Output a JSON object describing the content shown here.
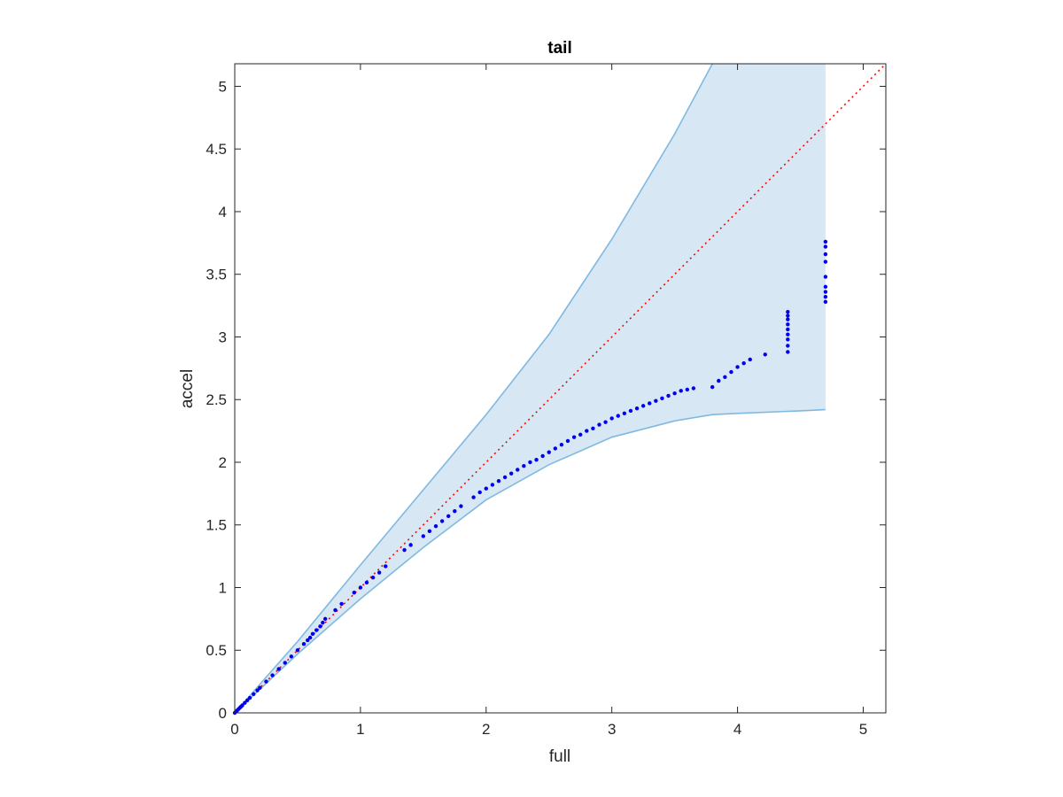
{
  "chart_data": {
    "type": "scatter",
    "title": "tail",
    "xlabel": "full",
    "ylabel": "accel",
    "xlim": [
      0,
      5.18
    ],
    "ylim": [
      0,
      5.18
    ],
    "xticks": [
      0,
      1,
      2,
      3,
      4,
      5
    ],
    "yticks": [
      0,
      0.5,
      1,
      1.5,
      2,
      2.5,
      3,
      3.5,
      4,
      4.5,
      5
    ],
    "xtick_labels": [
      "0",
      "1",
      "2",
      "3",
      "4",
      "5"
    ],
    "ytick_labels": [
      "0",
      "0.5",
      "1",
      "1.5",
      "2",
      "2.5",
      "3",
      "3.5",
      "4",
      "4.5",
      "5"
    ],
    "grid": false,
    "colors": {
      "band_fill": "#d7e8f4",
      "band_edge": "#80b9e0",
      "points": "#0000ee",
      "reference": "#ff0000"
    },
    "band": {
      "x": [
        0,
        0.5,
        1.0,
        1.5,
        2.0,
        2.5,
        3.0,
        3.5,
        3.8,
        4.0,
        4.5,
        4.7
      ],
      "upper": [
        0,
        0.57,
        1.18,
        1.78,
        2.38,
        3.02,
        3.78,
        4.62,
        5.18,
        5.18,
        5.18,
        5.18
      ],
      "lower": [
        0,
        0.47,
        0.91,
        1.32,
        1.7,
        1.98,
        2.2,
        2.33,
        2.38,
        2.39,
        2.41,
        2.42
      ]
    },
    "reference_line": {
      "x": [
        0,
        5.18
      ],
      "y": [
        0,
        5.18
      ],
      "style": "dotted"
    },
    "series": [
      {
        "x": [
          0.0,
          0.01,
          0.02,
          0.03,
          0.04,
          0.05,
          0.06,
          0.08,
          0.1,
          0.12,
          0.15,
          0.18,
          0.2,
          0.25,
          0.3,
          0.35,
          0.4,
          0.45,
          0.5,
          0.55,
          0.58,
          0.6,
          0.62,
          0.65,
          0.68,
          0.7,
          0.72,
          0.8,
          0.85,
          0.95,
          1.0,
          1.05,
          1.1,
          1.15,
          1.2,
          1.35,
          1.4,
          1.5,
          1.55,
          1.6,
          1.65,
          1.7,
          1.75,
          1.8,
          1.9,
          1.95,
          2.0,
          2.05,
          2.1,
          2.15,
          2.2,
          2.25,
          2.3,
          2.35,
          2.4,
          2.45,
          2.5,
          2.55,
          2.6,
          2.65,
          2.7,
          2.75,
          2.8,
          2.85,
          2.9,
          2.95,
          3.0,
          3.05,
          3.1,
          3.15,
          3.2,
          3.25,
          3.3,
          3.35,
          3.4,
          3.45,
          3.5,
          3.55,
          3.6,
          3.65,
          3.8,
          3.85,
          3.9,
          3.95,
          4.0,
          4.05,
          4.1,
          4.22,
          4.4,
          4.4,
          4.4,
          4.4,
          4.4,
          4.4,
          4.4,
          4.4,
          4.4,
          4.7,
          4.7,
          4.7,
          4.7,
          4.7,
          4.7,
          4.7,
          4.7,
          4.7
        ],
        "y": [
          0.0,
          0.01,
          0.02,
          0.03,
          0.04,
          0.05,
          0.06,
          0.08,
          0.1,
          0.12,
          0.15,
          0.18,
          0.2,
          0.25,
          0.3,
          0.35,
          0.4,
          0.45,
          0.5,
          0.55,
          0.58,
          0.6,
          0.63,
          0.66,
          0.69,
          0.72,
          0.75,
          0.82,
          0.87,
          0.96,
          1.0,
          1.04,
          1.08,
          1.12,
          1.17,
          1.3,
          1.34,
          1.41,
          1.45,
          1.49,
          1.53,
          1.57,
          1.61,
          1.65,
          1.72,
          1.76,
          1.79,
          1.82,
          1.85,
          1.88,
          1.91,
          1.94,
          1.97,
          2.0,
          2.02,
          2.05,
          2.08,
          2.11,
          2.14,
          2.17,
          2.2,
          2.22,
          2.25,
          2.27,
          2.3,
          2.32,
          2.35,
          2.37,
          2.39,
          2.41,
          2.43,
          2.45,
          2.47,
          2.49,
          2.51,
          2.53,
          2.55,
          2.57,
          2.58,
          2.59,
          2.6,
          2.65,
          2.68,
          2.72,
          2.76,
          2.79,
          2.82,
          2.86,
          2.88,
          2.93,
          2.98,
          3.02,
          3.06,
          3.1,
          3.14,
          3.17,
          3.2,
          3.28,
          3.32,
          3.36,
          3.4,
          3.48,
          3.6,
          3.66,
          3.72,
          3.76
        ]
      }
    ]
  }
}
